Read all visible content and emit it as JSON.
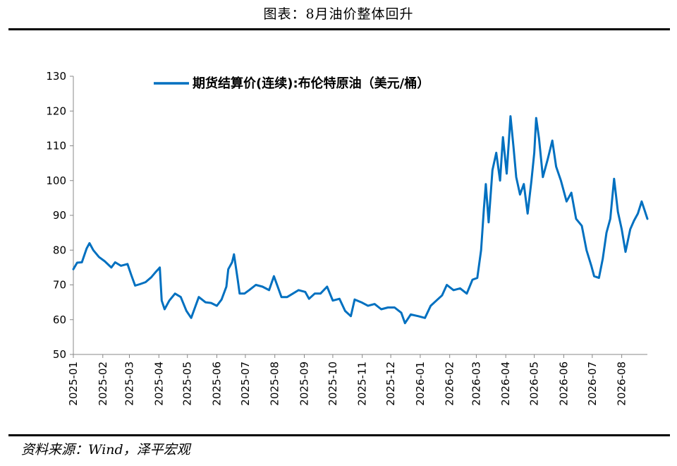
{
  "title": "图表：8月油价整体回升",
  "source": "资料来源：Wind，泽平宏观",
  "chart_data": {
    "type": "line",
    "title": "图表：8月油价整体回升",
    "xlabel": "",
    "ylabel": "",
    "ylim": [
      50,
      130
    ],
    "yticks": [
      50,
      60,
      70,
      80,
      90,
      100,
      110,
      120,
      130
    ],
    "xlim": [
      "2025-01-01",
      "2026-08-28"
    ],
    "xticks": [
      "2025-01",
      "2025-02",
      "2025-03",
      "2025-04",
      "2025-05",
      "2025-06",
      "2025-07",
      "2025-08",
      "2025-09",
      "2025-10",
      "2025-11",
      "2025-12",
      "2026-01",
      "2026-02",
      "2026-03",
      "2026-04",
      "2026-05",
      "2026-06",
      "2026-07",
      "2026-08"
    ],
    "grid": false,
    "legend_position": "top",
    "series": [
      {
        "name": "期货结算价(连续):布伦特原油（美元/桶）",
        "color": "#0070C0",
        "points": [
          [
            "2025-01-01",
            74.5
          ],
          [
            "2025-01-05",
            76.4
          ],
          [
            "2025-01-10",
            76.5
          ],
          [
            "2025-01-15",
            80.5
          ],
          [
            "2025-01-18",
            82.0
          ],
          [
            "2025-01-22",
            80.0
          ],
          [
            "2025-01-28",
            78.0
          ],
          [
            "2025-02-03",
            76.8
          ],
          [
            "2025-02-10",
            75.0
          ],
          [
            "2025-02-14",
            76.5
          ],
          [
            "2025-02-20",
            75.5
          ],
          [
            "2025-02-27",
            76.0
          ],
          [
            "2025-03-03",
            72.8
          ],
          [
            "2025-03-07",
            69.8
          ],
          [
            "2025-03-12",
            70.2
          ],
          [
            "2025-03-18",
            70.8
          ],
          [
            "2025-03-24",
            72.2
          ],
          [
            "2025-03-28",
            73.5
          ],
          [
            "2025-04-02",
            75.0
          ],
          [
            "2025-04-04",
            65.5
          ],
          [
            "2025-04-07",
            63.0
          ],
          [
            "2025-04-12",
            65.5
          ],
          [
            "2025-04-18",
            67.5
          ],
          [
            "2025-04-24",
            66.5
          ],
          [
            "2025-04-30",
            62.5
          ],
          [
            "2025-05-05",
            60.5
          ],
          [
            "2025-05-09",
            63.5
          ],
          [
            "2025-05-13",
            66.5
          ],
          [
            "2025-05-20",
            65.0
          ],
          [
            "2025-05-26",
            64.8
          ],
          [
            "2025-06-01",
            64.0
          ],
          [
            "2025-06-06",
            65.8
          ],
          [
            "2025-06-11",
            69.5
          ],
          [
            "2025-06-13",
            74.5
          ],
          [
            "2025-06-17",
            76.5
          ],
          [
            "2025-06-19",
            78.8
          ],
          [
            "2025-06-23",
            71.5
          ],
          [
            "2025-06-25",
            67.5
          ],
          [
            "2025-06-30",
            67.5
          ],
          [
            "2025-07-05",
            68.5
          ],
          [
            "2025-07-12",
            70.0
          ],
          [
            "2025-07-19",
            69.5
          ],
          [
            "2025-07-26",
            68.5
          ],
          [
            "2025-07-31",
            72.5
          ],
          [
            "2025-08-04",
            69.5
          ],
          [
            "2025-08-08",
            66.5
          ],
          [
            "2025-08-14",
            66.5
          ],
          [
            "2025-08-20",
            67.5
          ],
          [
            "2025-08-26",
            68.5
          ],
          [
            "2025-09-02",
            68.0
          ],
          [
            "2025-09-06",
            66.0
          ],
          [
            "2025-09-12",
            67.5
          ],
          [
            "2025-09-18",
            67.5
          ],
          [
            "2025-09-25",
            69.5
          ],
          [
            "2025-10-01",
            65.5
          ],
          [
            "2025-10-08",
            66.0
          ],
          [
            "2025-10-14",
            62.5
          ],
          [
            "2025-10-20",
            61.0
          ],
          [
            "2025-10-24",
            65.8
          ],
          [
            "2025-10-31",
            65.0
          ],
          [
            "2025-11-07",
            64.0
          ],
          [
            "2025-11-14",
            64.5
          ],
          [
            "2025-11-21",
            63.0
          ],
          [
            "2025-11-28",
            63.5
          ],
          [
            "2025-12-05",
            63.5
          ],
          [
            "2025-12-12",
            62.0
          ],
          [
            "2025-12-16",
            59.0
          ],
          [
            "2025-12-22",
            61.5
          ],
          [
            "2025-12-30",
            61.0
          ],
          [
            "2026-01-06",
            60.5
          ],
          [
            "2026-01-12",
            64.0
          ],
          [
            "2026-01-18",
            65.5
          ],
          [
            "2026-01-24",
            67.0
          ],
          [
            "2026-01-29",
            70.0
          ],
          [
            "2026-02-05",
            68.5
          ],
          [
            "2026-02-12",
            69.0
          ],
          [
            "2026-02-19",
            67.5
          ],
          [
            "2026-02-25",
            71.5
          ],
          [
            "2026-03-02",
            72.0
          ],
          [
            "2026-03-06",
            80.0
          ],
          [
            "2026-03-09",
            92.0
          ],
          [
            "2026-03-11",
            99.0
          ],
          [
            "2026-03-14",
            88.0
          ],
          [
            "2026-03-18",
            103.0
          ],
          [
            "2026-03-22",
            108.0
          ],
          [
            "2026-03-26",
            100.0
          ],
          [
            "2026-03-29",
            112.5
          ],
          [
            "2026-04-02",
            102.0
          ],
          [
            "2026-04-06",
            118.5
          ],
          [
            "2026-04-09",
            110.0
          ],
          [
            "2026-04-12",
            101.0
          ],
          [
            "2026-04-16",
            96.0
          ],
          [
            "2026-04-20",
            99.0
          ],
          [
            "2026-04-24",
            90.5
          ],
          [
            "2026-04-28",
            100.0
          ],
          [
            "2026-05-01",
            108.0
          ],
          [
            "2026-05-03",
            118.0
          ],
          [
            "2026-05-06",
            112.0
          ],
          [
            "2026-05-10",
            101.0
          ],
          [
            "2026-05-15",
            106.0
          ],
          [
            "2026-05-20",
            111.5
          ],
          [
            "2026-05-24",
            104.0
          ],
          [
            "2026-05-29",
            100.0
          ],
          [
            "2026-06-04",
            94.0
          ],
          [
            "2026-06-09",
            96.5
          ],
          [
            "2026-06-14",
            89.0
          ],
          [
            "2026-06-20",
            87.0
          ],
          [
            "2026-06-25",
            80.0
          ],
          [
            "2026-06-30",
            75.5
          ],
          [
            "2026-07-03",
            72.5
          ],
          [
            "2026-07-08",
            72.0
          ],
          [
            "2026-07-12",
            77.5
          ],
          [
            "2026-07-16",
            85.0
          ],
          [
            "2026-07-20",
            89.0
          ],
          [
            "2026-07-24",
            100.5
          ],
          [
            "2026-07-28",
            91.0
          ],
          [
            "2026-08-01",
            86.0
          ],
          [
            "2026-08-05",
            79.5
          ],
          [
            "2026-08-10",
            86.0
          ],
          [
            "2026-08-14",
            88.5
          ],
          [
            "2026-08-18",
            90.5
          ],
          [
            "2026-08-22",
            94.0
          ],
          [
            "2026-08-25",
            91.5
          ],
          [
            "2026-08-28",
            89.0
          ]
        ]
      }
    ]
  }
}
